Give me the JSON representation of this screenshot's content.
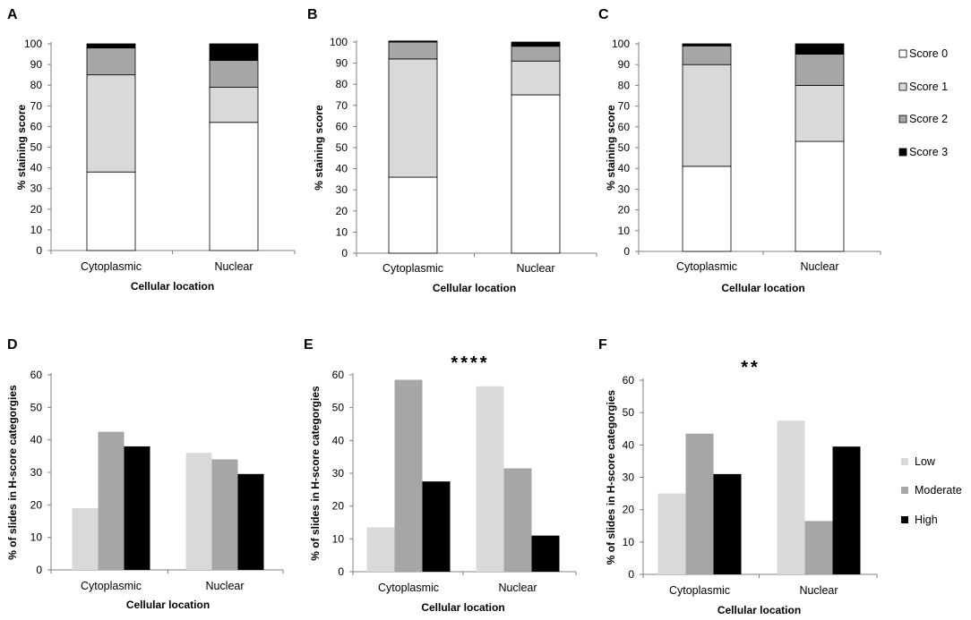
{
  "figure": {
    "legend_top": {
      "items": [
        {
          "label": "Score 0",
          "color": "#ffffff"
        },
        {
          "label": "Score 1",
          "color": "#d9d9d9"
        },
        {
          "label": "Score 2",
          "color": "#a6a6a6"
        },
        {
          "label": "Score 3",
          "color": "#000000"
        }
      ]
    },
    "legend_bottom": {
      "items": [
        {
          "label": "Low",
          "color": "#d9d9d9"
        },
        {
          "label": "Moderate",
          "color": "#a6a6a6"
        },
        {
          "label": "High",
          "color": "#000000"
        }
      ]
    }
  },
  "chart_data": [
    {
      "panel": "A",
      "type": "bar",
      "stacked": true,
      "categories": [
        "Cytoplasmic",
        "Nuclear"
      ],
      "series": [
        {
          "name": "Score 0",
          "values": [
            38,
            62
          ]
        },
        {
          "name": "Score 1",
          "values": [
            47,
            17
          ]
        },
        {
          "name": "Score 2",
          "values": [
            13,
            13
          ]
        },
        {
          "name": "Score 3",
          "values": [
            2,
            8
          ]
        }
      ],
      "xlabel": "Cellular location",
      "ylabel": "% staining score",
      "ylim": [
        0,
        100
      ],
      "yticks": [
        0,
        10,
        20,
        30,
        40,
        50,
        60,
        70,
        80,
        90,
        100
      ],
      "annotation": ""
    },
    {
      "panel": "B",
      "type": "bar",
      "stacked": true,
      "categories": [
        "Cytoplasmic",
        "Nuclear"
      ],
      "series": [
        {
          "name": "Score 0",
          "values": [
            36,
            75
          ]
        },
        {
          "name": "Score 1",
          "values": [
            56,
            16
          ]
        },
        {
          "name": "Score 2",
          "values": [
            8,
            7
          ]
        },
        {
          "name": "Score 3",
          "values": [
            0.5,
            2
          ]
        }
      ],
      "xlabel": "Cellular location",
      "ylabel": "% staining score",
      "ylim": [
        0,
        100
      ],
      "yticks": [
        0,
        10,
        20,
        30,
        40,
        50,
        60,
        70,
        80,
        90,
        100
      ],
      "annotation": ""
    },
    {
      "panel": "C",
      "type": "bar",
      "stacked": true,
      "categories": [
        "Cytoplasmic",
        "Nuclear"
      ],
      "series": [
        {
          "name": "Score 0",
          "values": [
            41,
            53
          ]
        },
        {
          "name": "Score 1",
          "values": [
            49,
            27
          ]
        },
        {
          "name": "Score 2",
          "values": [
            9,
            15
          ]
        },
        {
          "name": "Score 3",
          "values": [
            1,
            5
          ]
        }
      ],
      "xlabel": "Cellular location",
      "ylabel": "% staining score",
      "ylim": [
        0,
        100
      ],
      "yticks": [
        0,
        10,
        20,
        30,
        40,
        50,
        60,
        70,
        80,
        90,
        100
      ],
      "annotation": ""
    },
    {
      "panel": "D",
      "type": "bar",
      "stacked": false,
      "categories": [
        "Cytoplasmic",
        "Nuclear"
      ],
      "series": [
        {
          "name": "Low",
          "values": [
            19,
            36
          ]
        },
        {
          "name": "Moderate",
          "values": [
            42.5,
            34
          ]
        },
        {
          "name": "High",
          "values": [
            38,
            29.5
          ]
        }
      ],
      "xlabel": "Cellular location",
      "ylabel": "% of slides in H-score categorgies",
      "ylim": [
        0,
        60
      ],
      "yticks": [
        0,
        10,
        20,
        30,
        40,
        50,
        60
      ],
      "annotation": ""
    },
    {
      "panel": "E",
      "type": "bar",
      "stacked": false,
      "categories": [
        "Cytoplasmic",
        "Nuclear"
      ],
      "series": [
        {
          "name": "Low",
          "values": [
            13.5,
            56.5
          ]
        },
        {
          "name": "Moderate",
          "values": [
            58.5,
            31.5
          ]
        },
        {
          "name": "High",
          "values": [
            27.5,
            11
          ]
        }
      ],
      "xlabel": "Cellular location",
      "ylabel": "% of slides in H-score categorgies",
      "ylim": [
        0,
        60
      ],
      "yticks": [
        0,
        10,
        20,
        30,
        40,
        50,
        60
      ],
      "annotation": "****"
    },
    {
      "panel": "F",
      "type": "bar",
      "stacked": false,
      "categories": [
        "Cytoplasmic",
        "Nuclear"
      ],
      "series": [
        {
          "name": "Low",
          "values": [
            25,
            47.5
          ]
        },
        {
          "name": "Moderate",
          "values": [
            43.5,
            16.5
          ]
        },
        {
          "name": "High",
          "values": [
            31,
            39.5
          ]
        }
      ],
      "xlabel": "Cellular location",
      "ylabel": "% of slides in H-score categorgies",
      "ylim": [
        0,
        60
      ],
      "yticks": [
        0,
        10,
        20,
        30,
        40,
        50,
        60
      ],
      "annotation": "**"
    }
  ]
}
